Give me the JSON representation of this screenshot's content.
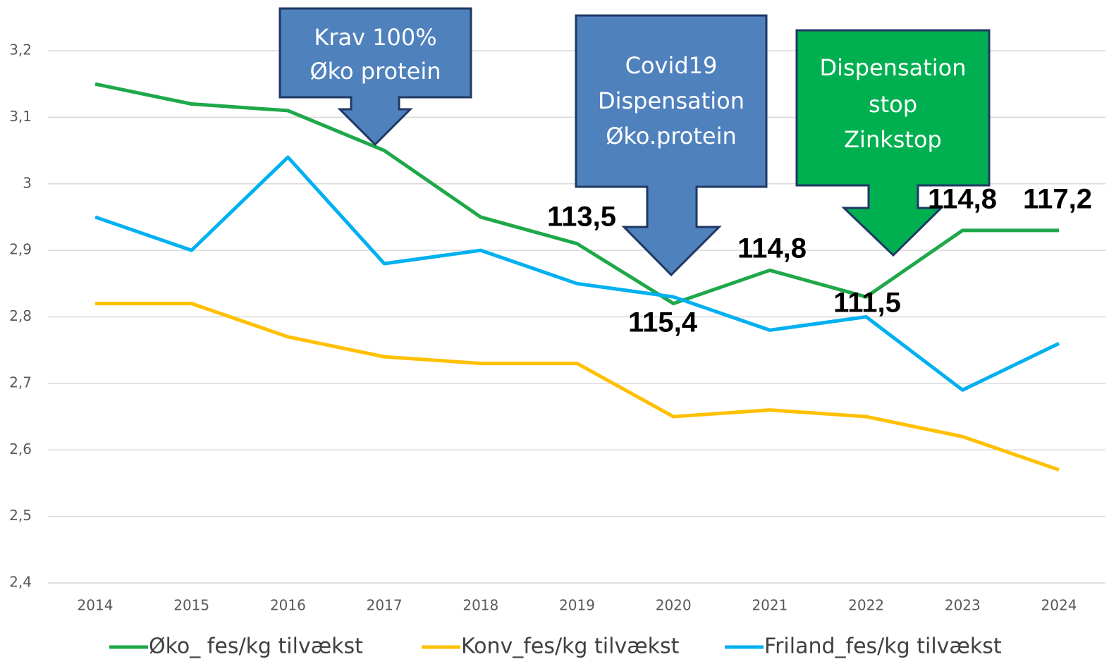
{
  "chart_data": {
    "type": "line",
    "x": [
      2014,
      2015,
      2016,
      2017,
      2018,
      2019,
      2020,
      2021,
      2022,
      2023,
      2024
    ],
    "series": [
      {
        "name": "Øko_ fes/kg tilvækst",
        "color": "#1fa84a",
        "values": [
          3.15,
          3.12,
          3.11,
          3.05,
          2.95,
          2.91,
          2.82,
          2.87,
          2.83,
          2.93,
          2.93
        ]
      },
      {
        "name": "Konv_fes/kg tilvækst",
        "color": "#ffc000",
        "values": [
          2.82,
          2.82,
          2.77,
          2.74,
          2.73,
          2.73,
          2.65,
          2.66,
          2.65,
          2.62,
          2.57
        ]
      },
      {
        "name": "Friland_fes/kg tilvækst",
        "color": "#00b0f0",
        "values": [
          2.95,
          2.9,
          3.04,
          2.88,
          2.9,
          2.85,
          2.83,
          2.78,
          2.8,
          2.69,
          2.76
        ]
      }
    ],
    "ylim": [
      2.4,
      3.2
    ],
    "yticks": [
      {
        "value": 2.4,
        "label": "2,4"
      },
      {
        "value": 2.5,
        "label": "2,5"
      },
      {
        "value": 2.6,
        "label": "2,6"
      },
      {
        "value": 2.7,
        "label": "2,7"
      },
      {
        "value": 2.8,
        "label": "2,8"
      },
      {
        "value": 2.9,
        "label": "2,9"
      },
      3,
      {
        "value": 3.1,
        "label": "3,1"
      },
      {
        "value": 3.2,
        "label": "3,2"
      }
    ],
    "grid": true,
    "legend": "bottom",
    "annotations": [
      "113,5",
      "115,4",
      "114,8",
      "111,5",
      "114,8",
      "117,2"
    ],
    "callouts": [
      {
        "lines": [
          "Krav 100%",
          "Øko protein"
        ],
        "color": "#4f81bd"
      },
      {
        "lines": [
          "Covid19",
          "Dispensation",
          "Øko.protein"
        ],
        "color": "#4f81bd"
      },
      {
        "lines": [
          "Dispensation",
          "stop",
          "Zinkstop"
        ],
        "color": "#00b050"
      }
    ]
  }
}
